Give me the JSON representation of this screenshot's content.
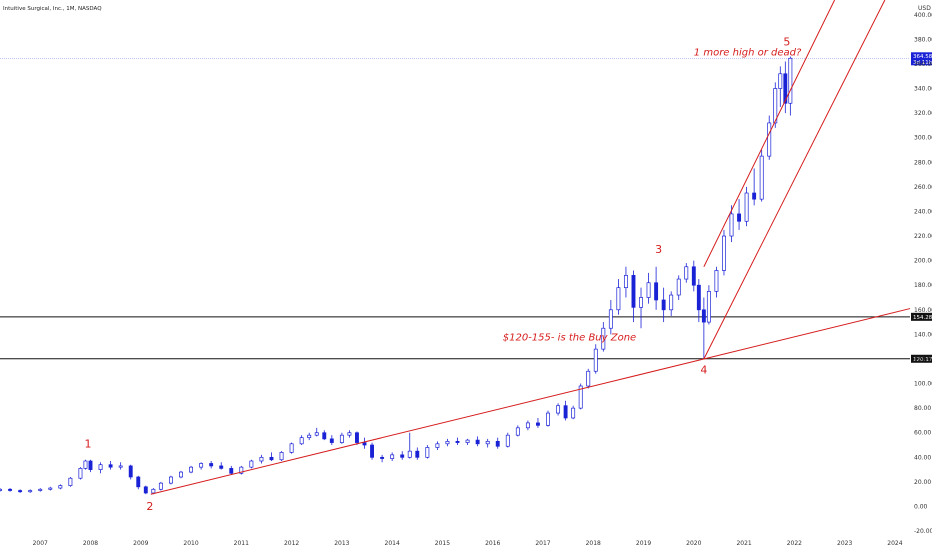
{
  "header": {
    "title": "Intuitive Surgical, Inc., 1M, NASDAQ",
    "currency": "USD"
  },
  "chart_data": {
    "type": "candlestick",
    "x_axis": {
      "ticks": [
        "2007",
        "2008",
        "2009",
        "2010",
        "2011",
        "2012",
        "2013",
        "2014",
        "2015",
        "2016",
        "2017",
        "2018",
        "2019",
        "2020",
        "2021",
        "2022",
        "2023",
        "2024"
      ],
      "range": [
        2006.2,
        2024.3
      ]
    },
    "y_axis": {
      "ticks": [
        "-20.00",
        "0.00",
        "20.00",
        "40.00",
        "60.00",
        "80.00",
        "100.00",
        "120.00",
        "140.00",
        "160.00",
        "180.00",
        "200.00",
        "220.00",
        "240.00",
        "260.00",
        "280.00",
        "300.00",
        "320.00",
        "340.00",
        "360.00",
        "380.00",
        "400.00"
      ],
      "range": [
        -24,
        412
      ]
    },
    "horizontal_lines": [
      {
        "label": "154.28",
        "value": 154.28,
        "color": "#111111"
      },
      {
        "label": "120.17",
        "value": 120.17,
        "color": "#111111"
      }
    ],
    "current_price": {
      "label": "364.58",
      "sublabel": "3d 11h",
      "value": 364.58,
      "color": "#1a22d6"
    },
    "trendlines": [
      {
        "name": "lower-support",
        "from": {
          "x": 2009.2,
          "y": 10
        },
        "to": {
          "x": 2024.3,
          "y": 161
        },
        "color": "#d61c1c"
      },
      {
        "name": "channel-lower",
        "from": {
          "x": 2020.2,
          "y": 120
        },
        "to": {
          "x": 2023.8,
          "y": 412
        },
        "color": "#d61c1c"
      },
      {
        "name": "channel-upper",
        "from": {
          "x": 2020.2,
          "y": 195
        },
        "to": {
          "x": 2022.8,
          "y": 412
        },
        "color": "#d61c1c"
      }
    ],
    "annotations": [
      {
        "text": "1",
        "x": 2007.95,
        "y": 48,
        "kind": "wave"
      },
      {
        "text": "2",
        "x": 2009.18,
        "y": -3,
        "kind": "wave"
      },
      {
        "text": "3",
        "x": 2019.3,
        "y": 206,
        "kind": "wave"
      },
      {
        "text": "4",
        "x": 2020.2,
        "y": 108,
        "kind": "wave"
      },
      {
        "text": "5",
        "x": 2021.85,
        "y": 375,
        "kind": "wave"
      },
      {
        "text": "1 more high or dead?",
        "x": 2020.0,
        "y": 367,
        "kind": "note"
      },
      {
        "text": "$120-155- is the Buy Zone",
        "x": 2016.2,
        "y": 135,
        "kind": "note"
      }
    ],
    "candles": [
      {
        "t": 2006.2,
        "o": 13,
        "h": 15,
        "l": 12,
        "c": 14
      },
      {
        "t": 2006.4,
        "o": 14,
        "h": 15,
        "l": 12,
        "c": 13
      },
      {
        "t": 2006.6,
        "o": 13,
        "h": 14,
        "l": 11,
        "c": 12
      },
      {
        "t": 2006.8,
        "o": 12,
        "h": 14,
        "l": 11,
        "c": 13
      },
      {
        "t": 2007.0,
        "o": 13,
        "h": 15,
        "l": 12,
        "c": 14
      },
      {
        "t": 2007.2,
        "o": 14,
        "h": 16,
        "l": 13,
        "c": 15
      },
      {
        "t": 2007.4,
        "o": 15,
        "h": 18,
        "l": 14,
        "c": 17
      },
      {
        "t": 2007.6,
        "o": 17,
        "h": 24,
        "l": 16,
        "c": 23
      },
      {
        "t": 2007.8,
        "o": 23,
        "h": 32,
        "l": 22,
        "c": 31
      },
      {
        "t": 2007.9,
        "o": 31,
        "h": 38,
        "l": 30,
        "c": 37
      },
      {
        "t": 2008.0,
        "o": 37,
        "h": 38,
        "l": 28,
        "c": 30
      },
      {
        "t": 2008.2,
        "o": 30,
        "h": 36,
        "l": 27,
        "c": 34
      },
      {
        "t": 2008.4,
        "o": 34,
        "h": 37,
        "l": 30,
        "c": 32
      },
      {
        "t": 2008.6,
        "o": 32,
        "h": 36,
        "l": 30,
        "c": 33
      },
      {
        "t": 2008.8,
        "o": 33,
        "h": 34,
        "l": 22,
        "c": 24
      },
      {
        "t": 2008.95,
        "o": 24,
        "h": 25,
        "l": 14,
        "c": 16
      },
      {
        "t": 2009.1,
        "o": 16,
        "h": 17,
        "l": 10,
        "c": 11
      },
      {
        "t": 2009.25,
        "o": 11,
        "h": 15,
        "l": 10,
        "c": 14
      },
      {
        "t": 2009.4,
        "o": 14,
        "h": 20,
        "l": 13,
        "c": 19
      },
      {
        "t": 2009.6,
        "o": 19,
        "h": 25,
        "l": 18,
        "c": 24
      },
      {
        "t": 2009.8,
        "o": 24,
        "h": 29,
        "l": 23,
        "c": 28
      },
      {
        "t": 2010.0,
        "o": 28,
        "h": 33,
        "l": 27,
        "c": 32
      },
      {
        "t": 2010.2,
        "o": 32,
        "h": 36,
        "l": 30,
        "c": 35
      },
      {
        "t": 2010.4,
        "o": 35,
        "h": 37,
        "l": 31,
        "c": 33
      },
      {
        "t": 2010.6,
        "o": 33,
        "h": 36,
        "l": 30,
        "c": 31
      },
      {
        "t": 2010.8,
        "o": 31,
        "h": 33,
        "l": 26,
        "c": 27
      },
      {
        "t": 2011.0,
        "o": 27,
        "h": 33,
        "l": 26,
        "c": 32
      },
      {
        "t": 2011.2,
        "o": 32,
        "h": 38,
        "l": 31,
        "c": 37
      },
      {
        "t": 2011.4,
        "o": 37,
        "h": 42,
        "l": 35,
        "c": 40
      },
      {
        "t": 2011.6,
        "o": 40,
        "h": 44,
        "l": 37,
        "c": 38
      },
      {
        "t": 2011.8,
        "o": 38,
        "h": 45,
        "l": 37,
        "c": 44
      },
      {
        "t": 2012.0,
        "o": 44,
        "h": 52,
        "l": 43,
        "c": 51
      },
      {
        "t": 2012.2,
        "o": 51,
        "h": 58,
        "l": 50,
        "c": 56
      },
      {
        "t": 2012.35,
        "o": 56,
        "h": 60,
        "l": 54,
        "c": 58
      },
      {
        "t": 2012.5,
        "o": 58,
        "h": 64,
        "l": 57,
        "c": 60
      },
      {
        "t": 2012.65,
        "o": 60,
        "h": 62,
        "l": 54,
        "c": 55
      },
      {
        "t": 2012.8,
        "o": 55,
        "h": 58,
        "l": 50,
        "c": 52
      },
      {
        "t": 2013.0,
        "o": 52,
        "h": 60,
        "l": 51,
        "c": 58
      },
      {
        "t": 2013.15,
        "o": 58,
        "h": 62,
        "l": 56,
        "c": 60
      },
      {
        "t": 2013.3,
        "o": 60,
        "h": 61,
        "l": 50,
        "c": 52
      },
      {
        "t": 2013.45,
        "o": 52,
        "h": 56,
        "l": 47,
        "c": 50
      },
      {
        "t": 2013.6,
        "o": 50,
        "h": 52,
        "l": 38,
        "c": 40
      },
      {
        "t": 2013.8,
        "o": 40,
        "h": 42,
        "l": 36,
        "c": 39
      },
      {
        "t": 2014.0,
        "o": 39,
        "h": 44,
        "l": 37,
        "c": 42
      },
      {
        "t": 2014.2,
        "o": 42,
        "h": 45,
        "l": 38,
        "c": 40
      },
      {
        "t": 2014.35,
        "o": 40,
        "h": 60,
        "l": 39,
        "c": 45
      },
      {
        "t": 2014.5,
        "o": 45,
        "h": 48,
        "l": 38,
        "c": 40
      },
      {
        "t": 2014.7,
        "o": 40,
        "h": 50,
        "l": 39,
        "c": 48
      },
      {
        "t": 2014.9,
        "o": 48,
        "h": 53,
        "l": 46,
        "c": 51
      },
      {
        "t": 2015.1,
        "o": 51,
        "h": 55,
        "l": 49,
        "c": 53
      },
      {
        "t": 2015.3,
        "o": 53,
        "h": 56,
        "l": 50,
        "c": 52
      },
      {
        "t": 2015.5,
        "o": 52,
        "h": 55,
        "l": 50,
        "c": 54
      },
      {
        "t": 2015.7,
        "o": 54,
        "h": 57,
        "l": 49,
        "c": 51
      },
      {
        "t": 2015.9,
        "o": 51,
        "h": 55,
        "l": 48,
        "c": 53
      },
      {
        "t": 2016.1,
        "o": 53,
        "h": 56,
        "l": 47,
        "c": 49
      },
      {
        "t": 2016.3,
        "o": 49,
        "h": 60,
        "l": 48,
        "c": 58
      },
      {
        "t": 2016.5,
        "o": 58,
        "h": 66,
        "l": 57,
        "c": 64
      },
      {
        "t": 2016.7,
        "o": 64,
        "h": 70,
        "l": 62,
        "c": 68
      },
      {
        "t": 2016.9,
        "o": 68,
        "h": 72,
        "l": 64,
        "c": 66
      },
      {
        "t": 2017.1,
        "o": 66,
        "h": 78,
        "l": 65,
        "c": 76
      },
      {
        "t": 2017.3,
        "o": 76,
        "h": 84,
        "l": 74,
        "c": 82
      },
      {
        "t": 2017.45,
        "o": 82,
        "h": 86,
        "l": 70,
        "c": 72
      },
      {
        "t": 2017.6,
        "o": 72,
        "h": 82,
        "l": 71,
        "c": 80
      },
      {
        "t": 2017.75,
        "o": 80,
        "h": 100,
        "l": 79,
        "c": 98
      },
      {
        "t": 2017.9,
        "o": 98,
        "h": 112,
        "l": 96,
        "c": 110
      },
      {
        "t": 2018.05,
        "o": 110,
        "h": 132,
        "l": 108,
        "c": 128
      },
      {
        "t": 2018.2,
        "o": 128,
        "h": 150,
        "l": 126,
        "c": 145
      },
      {
        "t": 2018.35,
        "o": 145,
        "h": 168,
        "l": 140,
        "c": 160
      },
      {
        "t": 2018.5,
        "o": 160,
        "h": 185,
        "l": 156,
        "c": 178
      },
      {
        "t": 2018.65,
        "o": 178,
        "h": 195,
        "l": 170,
        "c": 188
      },
      {
        "t": 2018.8,
        "o": 188,
        "h": 192,
        "l": 150,
        "c": 162
      },
      {
        "t": 2018.95,
        "o": 162,
        "h": 178,
        "l": 145,
        "c": 170
      },
      {
        "t": 2019.1,
        "o": 170,
        "h": 190,
        "l": 165,
        "c": 182
      },
      {
        "t": 2019.25,
        "o": 182,
        "h": 195,
        "l": 160,
        "c": 168
      },
      {
        "t": 2019.4,
        "o": 168,
        "h": 178,
        "l": 150,
        "c": 160
      },
      {
        "t": 2019.55,
        "o": 160,
        "h": 175,
        "l": 155,
        "c": 172
      },
      {
        "t": 2019.7,
        "o": 172,
        "h": 188,
        "l": 168,
        "c": 185
      },
      {
        "t": 2019.85,
        "o": 185,
        "h": 198,
        "l": 182,
        "c": 195
      },
      {
        "t": 2020.0,
        "o": 195,
        "h": 200,
        "l": 175,
        "c": 180
      },
      {
        "t": 2020.1,
        "o": 180,
        "h": 185,
        "l": 150,
        "c": 160
      },
      {
        "t": 2020.2,
        "o": 160,
        "h": 170,
        "l": 120,
        "c": 150
      },
      {
        "t": 2020.3,
        "o": 150,
        "h": 180,
        "l": 148,
        "c": 175
      },
      {
        "t": 2020.45,
        "o": 175,
        "h": 195,
        "l": 170,
        "c": 192
      },
      {
        "t": 2020.6,
        "o": 192,
        "h": 225,
        "l": 188,
        "c": 220
      },
      {
        "t": 2020.75,
        "o": 220,
        "h": 245,
        "l": 215,
        "c": 238
      },
      {
        "t": 2020.9,
        "o": 238,
        "h": 250,
        "l": 225,
        "c": 232
      },
      {
        "t": 2021.05,
        "o": 232,
        "h": 260,
        "l": 228,
        "c": 255
      },
      {
        "t": 2021.2,
        "o": 255,
        "h": 275,
        "l": 245,
        "c": 250
      },
      {
        "t": 2021.35,
        "o": 250,
        "h": 290,
        "l": 248,
        "c": 285
      },
      {
        "t": 2021.5,
        "o": 285,
        "h": 318,
        "l": 282,
        "c": 312
      },
      {
        "t": 2021.62,
        "o": 312,
        "h": 345,
        "l": 308,
        "c": 340
      },
      {
        "t": 2021.72,
        "o": 340,
        "h": 358,
        "l": 325,
        "c": 352
      },
      {
        "t": 2021.82,
        "o": 352,
        "h": 362,
        "l": 320,
        "c": 328
      },
      {
        "t": 2021.92,
        "o": 328,
        "h": 366,
        "l": 318,
        "c": 364.58
      }
    ]
  }
}
